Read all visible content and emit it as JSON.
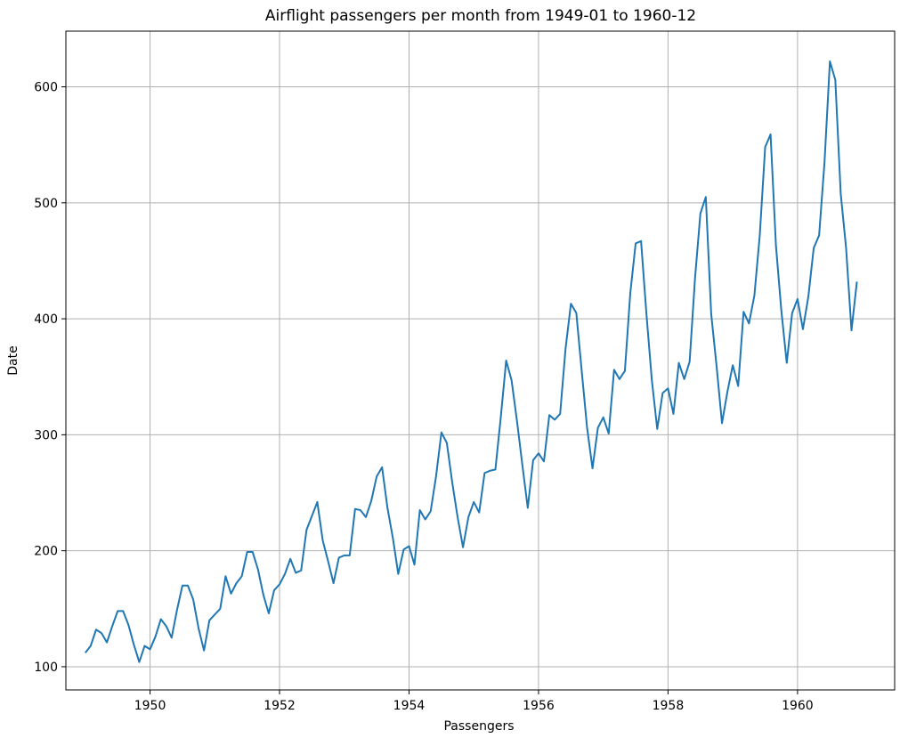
{
  "chart_data": {
    "type": "line",
    "title": "Airflight passengers per month from 1949-01 to 1960-12",
    "xlabel": "Passengers",
    "ylabel": "Date",
    "x_start": "1949-01",
    "x_end": "1960-12",
    "xlim": [
      1948.7,
      1961.5
    ],
    "ylim": [
      80,
      648
    ],
    "x_ticks": [
      1950,
      1952,
      1954,
      1956,
      1958,
      1960
    ],
    "y_ticks": [
      100,
      200,
      300,
      400,
      500,
      600
    ],
    "x_tick_labels": [
      "1950",
      "1952",
      "1954",
      "1956",
      "1958",
      "1960"
    ],
    "y_tick_labels": [
      "100",
      "200",
      "300",
      "400",
      "500",
      "600"
    ],
    "grid": true,
    "legend": "none",
    "series": [
      {
        "color": "#1f77b4",
        "values": [
          112,
          118,
          132,
          129,
          121,
          135,
          148,
          148,
          136,
          119,
          104,
          118,
          115,
          126,
          141,
          135,
          125,
          149,
          170,
          170,
          158,
          133,
          114,
          140,
          145,
          150,
          178,
          163,
          172,
          178,
          199,
          199,
          184,
          162,
          146,
          166,
          171,
          180,
          193,
          181,
          183,
          218,
          230,
          242,
          209,
          191,
          172,
          194,
          196,
          196,
          236,
          235,
          229,
          243,
          264,
          272,
          237,
          211,
          180,
          201,
          204,
          188,
          235,
          227,
          234,
          264,
          302,
          293,
          259,
          229,
          203,
          229,
          242,
          233,
          267,
          269,
          270,
          315,
          364,
          347,
          312,
          274,
          237,
          278,
          284,
          277,
          317,
          313,
          318,
          374,
          413,
          405,
          355,
          306,
          271,
          306,
          315,
          301,
          356,
          348,
          355,
          422,
          465,
          467,
          404,
          347,
          305,
          336,
          340,
          318,
          362,
          348,
          363,
          435,
          491,
          505,
          404,
          359,
          310,
          337,
          360,
          342,
          406,
          396,
          420,
          472,
          548,
          559,
          463,
          407,
          362,
          405,
          417,
          391,
          419,
          461,
          472,
          535,
          622,
          606,
          508,
          461,
          390,
          432
        ]
      }
    ]
  }
}
